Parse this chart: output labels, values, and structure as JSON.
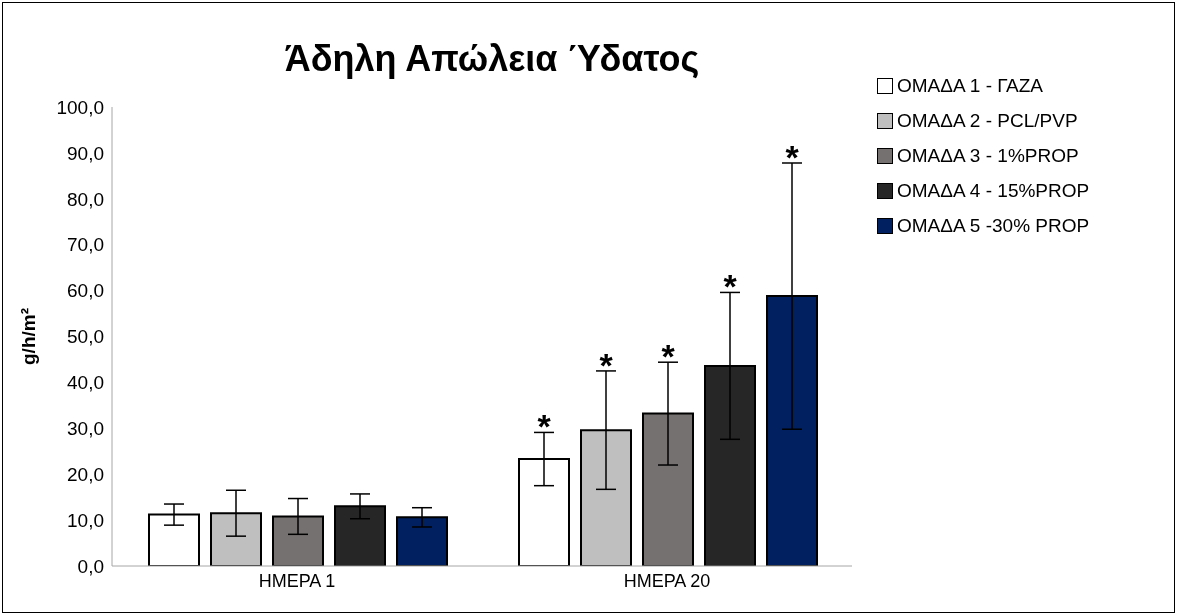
{
  "chart_data": {
    "type": "bar",
    "title": "Άδηλη Απώλεια Ύδατος",
    "ylabel": "g/h/m²",
    "categories": [
      "ΗΜΕΡΑ 1",
      "ΗΜΕΡΑ 20"
    ],
    "series": [
      {
        "name": "ΟΜΑΔΑ 1 - ΓΑΖΑ",
        "color": "#ffffff",
        "values": [
          11.2,
          23.3
        ],
        "errors": [
          2.3,
          5.8
        ]
      },
      {
        "name": "ΟΜΑΔΑ 2 - PCL/PVP",
        "color": "#bfbfbf",
        "values": [
          11.5,
          29.6
        ],
        "errors": [
          5.0,
          12.9
        ]
      },
      {
        "name": "ΟΜΑΔΑ 3 - 1%PROP",
        "color": "#767171",
        "values": [
          10.8,
          33.2
        ],
        "errors": [
          3.9,
          11.2
        ]
      },
      {
        "name": "ΟΜΑΔΑ 4 - 15%PROP",
        "color": "#262626",
        "values": [
          13.0,
          43.6
        ],
        "errors": [
          2.7,
          16.0
        ]
      },
      {
        "name": "ΟΜΑΔΑ 5 -30% PROP",
        "color": "#002060",
        "values": [
          10.6,
          58.8
        ],
        "errors": [
          2.1,
          29.0
        ]
      }
    ],
    "annotations": [
      "*",
      "*",
      "*",
      "*",
      "*"
    ],
    "ylim": [
      0,
      100
    ],
    "yticks": [
      {
        "value": 0,
        "label": "0,0"
      },
      {
        "value": 10,
        "label": "10,0"
      },
      {
        "value": 20,
        "label": "20,0"
      },
      {
        "value": 30,
        "label": "30,0"
      },
      {
        "value": 40,
        "label": "40,0"
      },
      {
        "value": 50,
        "label": "50,0"
      },
      {
        "value": 60,
        "label": "60,0"
      },
      {
        "value": 70,
        "label": "70,0"
      },
      {
        "value": 80,
        "label": "80,0"
      },
      {
        "value": 90,
        "label": "90,0"
      },
      {
        "value": 100,
        "label": "100,0"
      }
    ],
    "grid": false,
    "legend": "top right"
  }
}
